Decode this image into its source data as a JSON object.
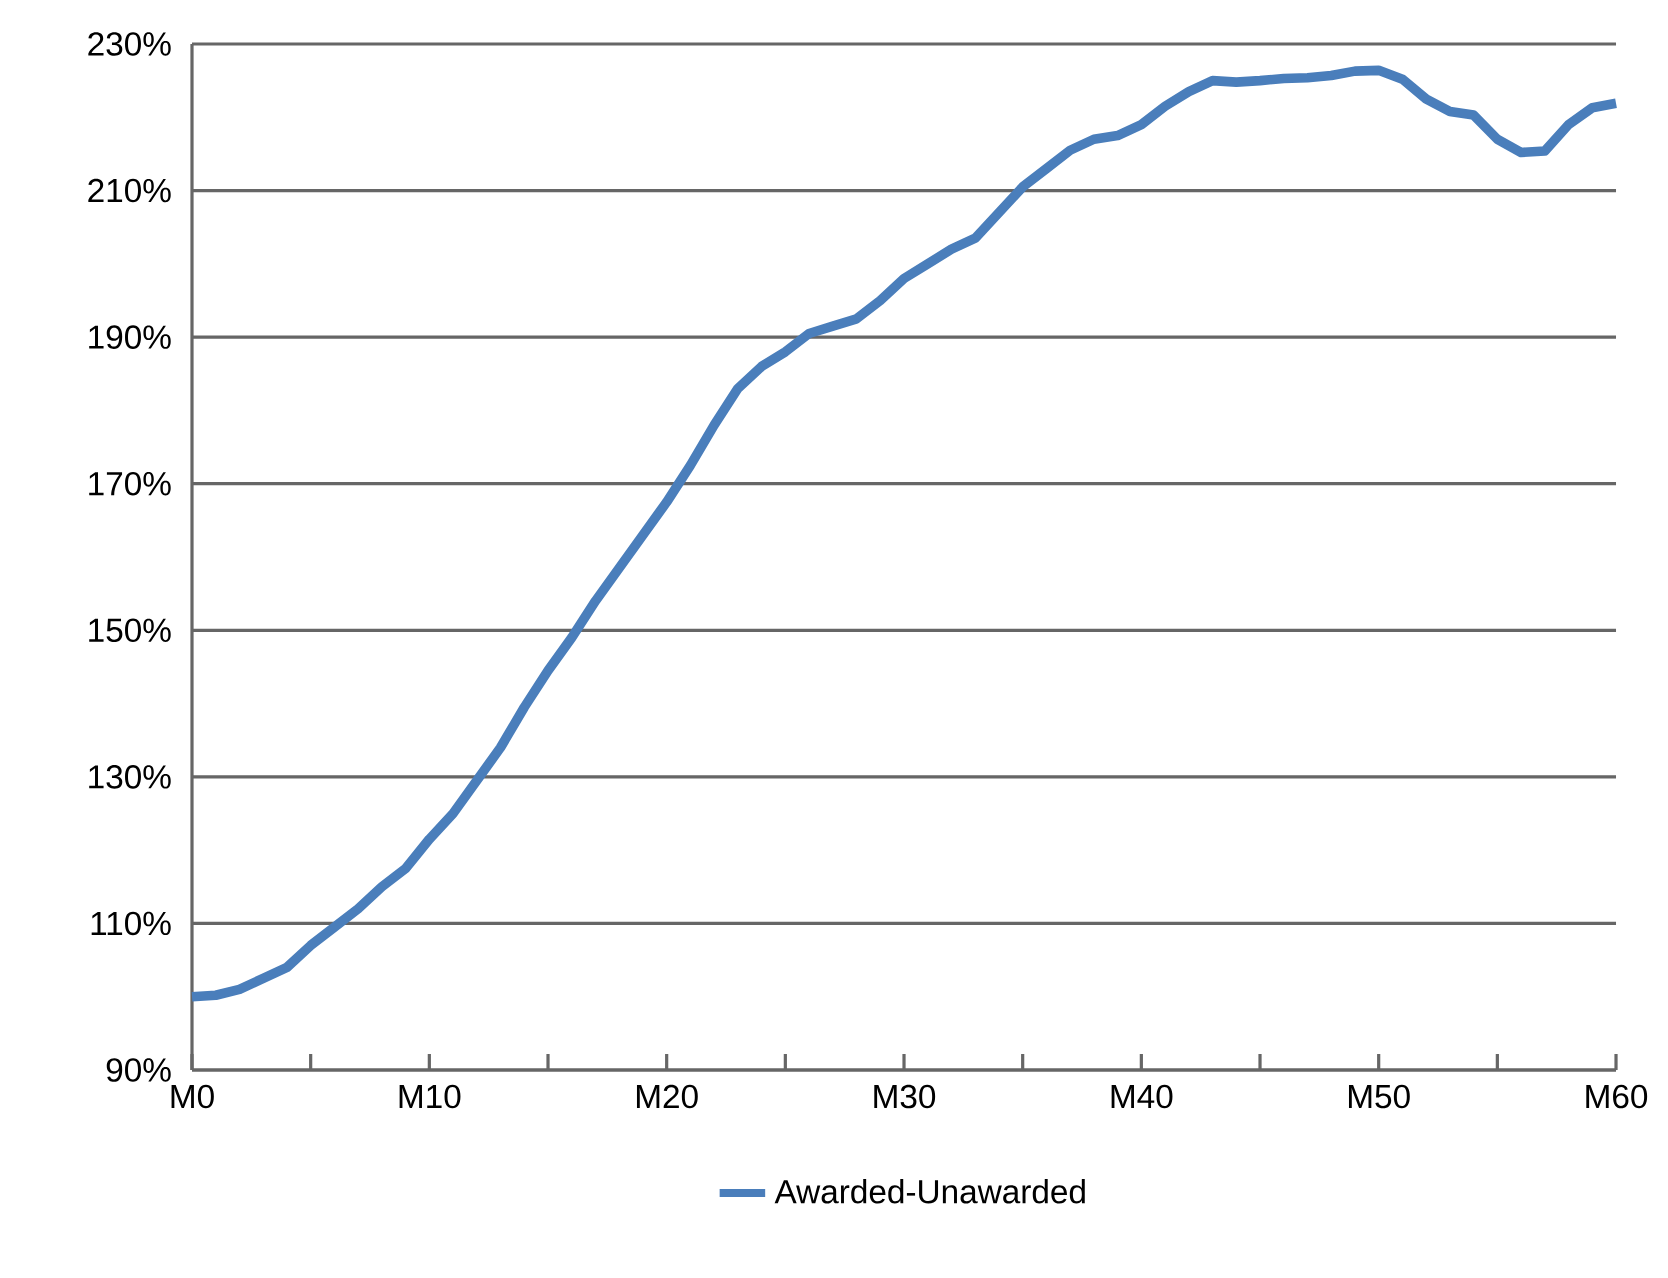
{
  "chart_data": {
    "type": "line",
    "categories": [
      "M0",
      null,
      null,
      null,
      null,
      null,
      null,
      null,
      null,
      null,
      "M10",
      null,
      null,
      null,
      null,
      null,
      null,
      null,
      null,
      null,
      "M20",
      null,
      null,
      null,
      null,
      null,
      null,
      null,
      null,
      null,
      "M30",
      null,
      null,
      null,
      null,
      null,
      null,
      null,
      null,
      null,
      "M40",
      null,
      null,
      null,
      null,
      null,
      null,
      null,
      null,
      null,
      "M50",
      null,
      null,
      null,
      null,
      null,
      null,
      null,
      null,
      null,
      "M60"
    ],
    "series": [
      {
        "name": "Awarded-Unawarded",
        "color": "#4a7ebb",
        "values": [
          100,
          100.2,
          101,
          102.5,
          104,
          107,
          109.5,
          112,
          115,
          117.5,
          121.5,
          125,
          129.5,
          134,
          139.5,
          144.5,
          149,
          154,
          158.5,
          163,
          167.5,
          172.5,
          178,
          183,
          186,
          188,
          190.5,
          191.5,
          192.5,
          195,
          198,
          200,
          202,
          203.5,
          207,
          210.5,
          213,
          215.5,
          217,
          217.5,
          219,
          221.5,
          223.5,
          225,
          224.8,
          225,
          225.3,
          225.4,
          225.7,
          226.3,
          226.4,
          225.2,
          222.5,
          220.8,
          220.3,
          217,
          215.2,
          215.4,
          219,
          221.3,
          221.9
        ]
      }
    ],
    "ylim": [
      90,
      230
    ],
    "yticks": [
      {
        "value": 90,
        "label": "90%"
      },
      {
        "value": 110,
        "label": "110%"
      },
      {
        "value": 130,
        "label": "130%"
      },
      {
        "value": 150,
        "label": "150%"
      },
      {
        "value": 170,
        "label": "170%"
      },
      {
        "value": 190,
        "label": "190%"
      },
      {
        "value": 210,
        "label": "210%"
      },
      {
        "value": 230,
        "label": "230%"
      }
    ],
    "grid": "y",
    "legend": "bottom",
    "marker": "none",
    "line_style": "solid"
  }
}
